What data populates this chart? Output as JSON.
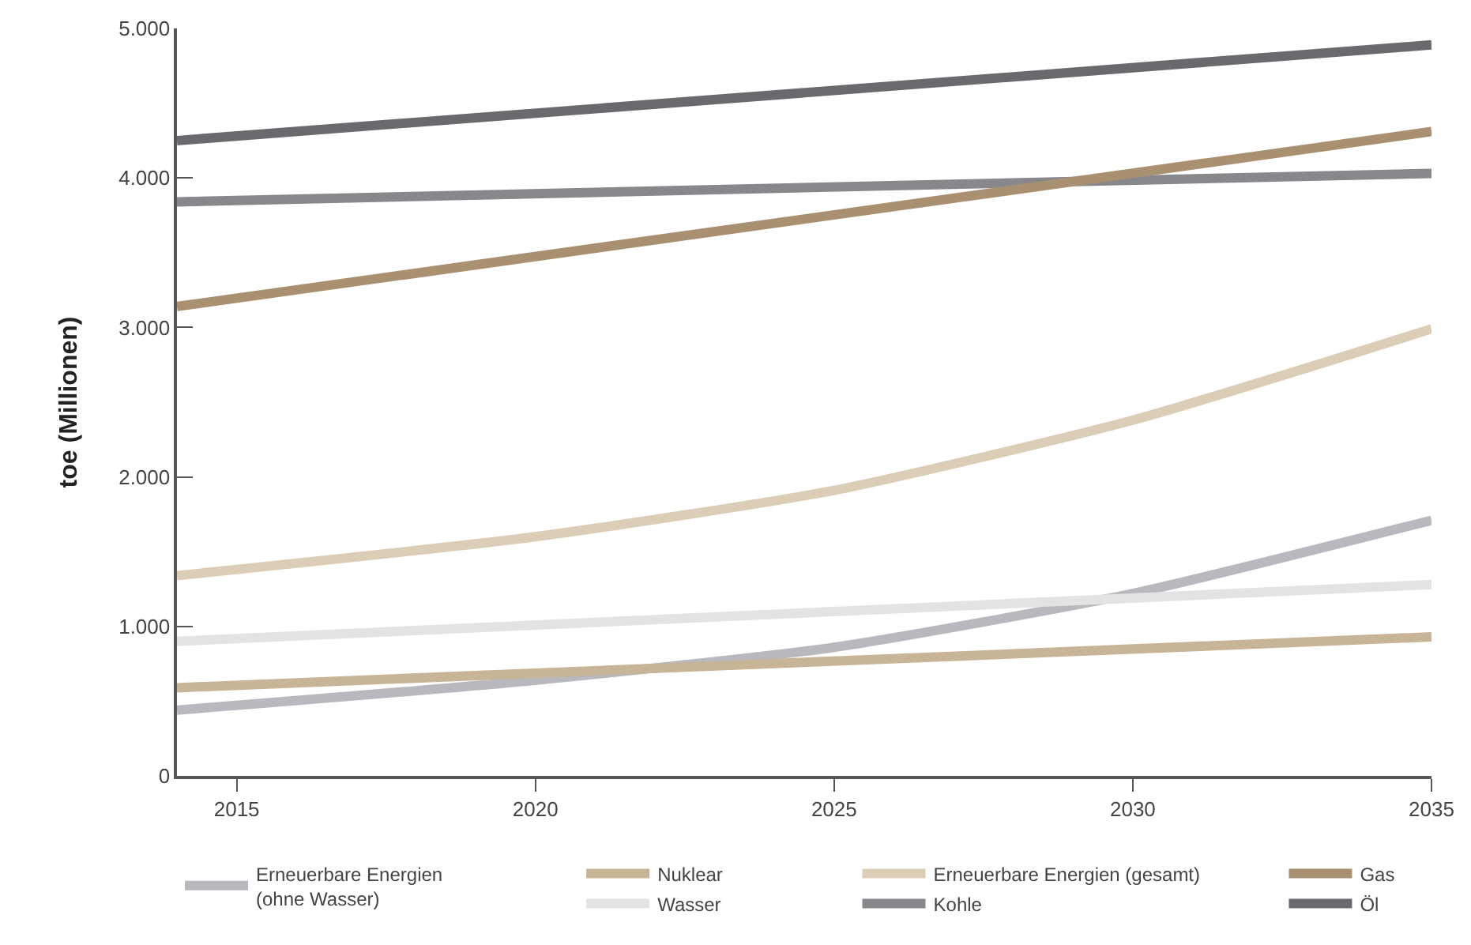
{
  "chart_data": {
    "type": "line",
    "ylabel": "toe (Millionen)",
    "xlim": [
      2014,
      2035
    ],
    "xticks": [
      2015,
      2020,
      2025,
      2030,
      2035
    ],
    "ylim": [
      0,
      5000
    ],
    "yticks": [
      {
        "value": 0,
        "label": "0"
      },
      {
        "value": 1000,
        "label": "1.000"
      },
      {
        "value": 2000,
        "label": "2.000"
      },
      {
        "value": 3000,
        "label": "3.000"
      },
      {
        "value": 4000,
        "label": "4.000"
      },
      {
        "value": 5000,
        "label": "5.000"
      }
    ],
    "legend": "bottom",
    "marker": "none",
    "line_style": "solid",
    "series": [
      {
        "name": "Erneuerbare Energien\n(ohne Wasser)",
        "color": "#b8b9be",
        "x": [
          2014,
          2020,
          2025,
          2030,
          2035
        ],
        "values": [
          440,
          640,
          860,
          1220,
          1710
        ]
      },
      {
        "name": "Nuklear",
        "color": "#c8b496",
        "x": [
          2014,
          2035
        ],
        "values": [
          590,
          930
        ]
      },
      {
        "name": "Wasser",
        "color": "#e3e3e3",
        "x": [
          2014,
          2035
        ],
        "values": [
          900,
          1280
        ]
      },
      {
        "name": "Erneuerbare Energien (gesamt)",
        "color": "#dccdb6",
        "x": [
          2014,
          2020,
          2025,
          2030,
          2035
        ],
        "values": [
          1340,
          1600,
          1910,
          2380,
          2990
        ]
      },
      {
        "name": "Kohle",
        "color": "#88888c",
        "x": [
          2014,
          2035
        ],
        "values": [
          3840,
          4030
        ]
      },
      {
        "name": "Gas",
        "color": "#a89070",
        "x": [
          2014,
          2035
        ],
        "values": [
          3140,
          4310
        ]
      },
      {
        "name": "Öl",
        "color": "#6a6a6e",
        "x": [
          2014,
          2035
        ],
        "values": [
          4250,
          4890
        ]
      }
    ]
  }
}
